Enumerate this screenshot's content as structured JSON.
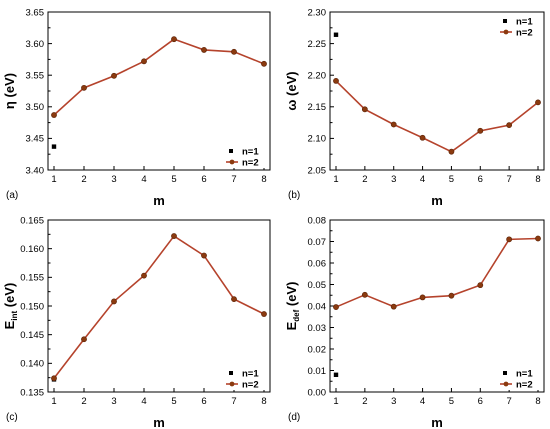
{
  "colors": {
    "n1_marker": "#000000",
    "n2_line": "#b5432c",
    "n2_marker": "#8b3a0f",
    "axis": "#000000"
  },
  "chart_data": [
    {
      "type": "line",
      "panel": "(a)",
      "xlabel": "m",
      "ylabel": "η (eV)",
      "ylabel_sub": "",
      "categories": [
        1,
        2,
        3,
        4,
        5,
        6,
        7,
        8
      ],
      "ylim": [
        3.4,
        3.65
      ],
      "yticks": [
        "3.40",
        "3.45",
        "3.50",
        "3.55",
        "3.60",
        "3.65"
      ],
      "xticks": [
        "1",
        "2",
        "3",
        "4",
        "5",
        "6",
        "7",
        "8"
      ],
      "legend": "bottom-right",
      "series": [
        {
          "name": "n=1",
          "style": "scatter",
          "x": [
            1
          ],
          "values": [
            3.437
          ]
        },
        {
          "name": "n=2",
          "style": "line",
          "x": [
            1,
            2,
            3,
            4,
            5,
            6,
            7,
            8
          ],
          "values": [
            3.487,
            3.53,
            3.549,
            3.572,
            3.607,
            3.59,
            3.587,
            3.568
          ]
        }
      ]
    },
    {
      "type": "line",
      "panel": "(b)",
      "xlabel": "m",
      "ylabel": "ω (eV)",
      "ylabel_sub": "",
      "categories": [
        1,
        2,
        3,
        4,
        5,
        6,
        7,
        8
      ],
      "ylim": [
        2.05,
        2.3
      ],
      "yticks": [
        "2.05",
        "2.10",
        "2.15",
        "2.20",
        "2.25",
        "2.30"
      ],
      "xticks": [
        "1",
        "2",
        "3",
        "4",
        "5",
        "6",
        "7",
        "8"
      ],
      "legend": "top-right",
      "series": [
        {
          "name": "n=1",
          "style": "scatter",
          "x": [
            1
          ],
          "values": [
            2.264
          ]
        },
        {
          "name": "n=2",
          "style": "line",
          "x": [
            1,
            2,
            3,
            4,
            5,
            6,
            7,
            8
          ],
          "values": [
            2.191,
            2.146,
            2.122,
            2.101,
            2.079,
            2.112,
            2.121,
            2.157
          ]
        }
      ]
    },
    {
      "type": "line",
      "panel": "(c)",
      "xlabel": "m",
      "ylabel": "E",
      "ylabel_sub": "int",
      "ylabel_unit": " (eV)",
      "categories": [
        1,
        2,
        3,
        4,
        5,
        6,
        7,
        8
      ],
      "ylim": [
        0.135,
        0.165
      ],
      "yticks": [
        "0.135",
        "0.140",
        "0.145",
        "0.150",
        "0.155",
        "0.160",
        "0.165"
      ],
      "xticks": [
        "1",
        "2",
        "3",
        "4",
        "5",
        "6",
        "7",
        "8"
      ],
      "legend": "bottom-right",
      "series": [
        {
          "name": "n=1",
          "style": "scatter",
          "x": [
            1
          ],
          "values": [
            0.1372
          ]
        },
        {
          "name": "n=2",
          "style": "line",
          "x": [
            1,
            2,
            3,
            4,
            5,
            6,
            7,
            8
          ],
          "values": [
            0.1374,
            0.1442,
            0.1508,
            0.1553,
            0.1622,
            0.1588,
            0.1512,
            0.1486
          ]
        }
      ]
    },
    {
      "type": "line",
      "panel": "(d)",
      "xlabel": "m",
      "ylabel": "E",
      "ylabel_sub": "def",
      "ylabel_unit": " (eV)",
      "categories": [
        1,
        2,
        3,
        4,
        5,
        6,
        7,
        8
      ],
      "ylim": [
        0.0,
        0.08
      ],
      "yticks": [
        "0.00",
        "0.01",
        "0.02",
        "0.03",
        "0.04",
        "0.05",
        "0.06",
        "0.07",
        "0.08"
      ],
      "xticks": [
        "1",
        "2",
        "3",
        "4",
        "5",
        "6",
        "7",
        "8"
      ],
      "legend": "bottom-right",
      "series": [
        {
          "name": "n=1",
          "style": "scatter",
          "x": [
            1
          ],
          "values": [
            0.008
          ]
        },
        {
          "name": "n=2",
          "style": "line",
          "x": [
            1,
            2,
            3,
            4,
            5,
            6,
            7,
            8
          ],
          "values": [
            0.0395,
            0.0452,
            0.0397,
            0.044,
            0.0448,
            0.0497,
            0.071,
            0.0714
          ]
        }
      ]
    }
  ]
}
